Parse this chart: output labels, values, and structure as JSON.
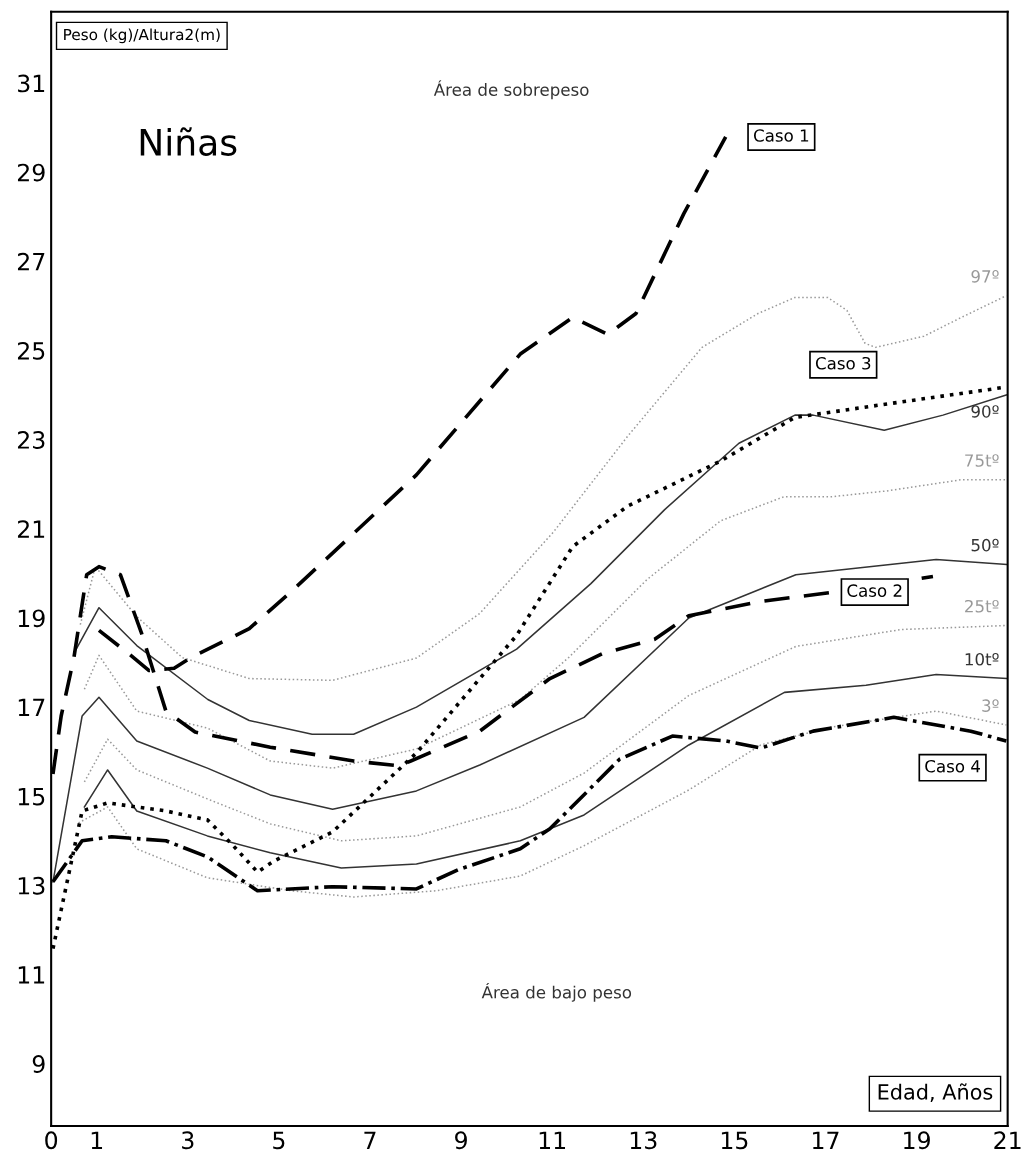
{
  "chart_data": {
    "type": "line",
    "title": "Niñas",
    "xlabel": "Edad, Años",
    "ylabel": "Peso (kg)/Altura2(m)",
    "annotations": [
      "Área de sobrepeso",
      "Área de bajo peso"
    ],
    "xlim": [
      0,
      21
    ],
    "ylim": [
      7.6,
      32.6
    ],
    "xticks": [
      0,
      1,
      3,
      5,
      7,
      9,
      11,
      13,
      15,
      17,
      19,
      21
    ],
    "yticks": [
      9,
      11,
      13,
      15,
      17,
      19,
      21,
      23,
      25,
      27,
      29,
      31
    ],
    "grid": false,
    "legend": false,
    "marker": "none",
    "series": [
      {
        "name": "97º",
        "color": "#999999",
        "line_style": "dotted",
        "x": [
          0.64,
          0.97,
          1.88,
          2.88,
          4.35,
          6.18,
          8.02,
          9.41,
          11.03,
          12.66,
          14.29,
          15.52,
          16.33,
          17.05,
          17.47,
          17.87,
          18.1,
          19.16,
          19.98,
          20.97
        ],
        "values": [
          18.85,
          20.15,
          19.03,
          18.11,
          17.64,
          17.6,
          18.1,
          19.1,
          20.93,
          23.08,
          25.07,
          25.83,
          26.19,
          26.19,
          25.9,
          25.16,
          25.07,
          25.32,
          25.74,
          26.23
        ]
      },
      {
        "name": "90º",
        "color": "#333333",
        "line_style": "solid",
        "x": [
          0.55,
          1.05,
          1.88,
          3.44,
          4.35,
          5.73,
          6.64,
          8.02,
          10.22,
          11.85,
          13.47,
          15.1,
          16.33,
          16.73,
          18.29,
          19.58,
          20.97
        ],
        "values": [
          18.3,
          19.23,
          18.38,
          17.17,
          16.7,
          16.39,
          16.39,
          17.0,
          18.3,
          19.77,
          21.43,
          22.92,
          23.55,
          23.55,
          23.21,
          23.55,
          24.0
        ]
      },
      {
        "name": "75tº",
        "color": "#999999",
        "line_style": "dotted",
        "x": [
          0.73,
          1.05,
          1.88,
          3.43,
          4.81,
          6.18,
          8.02,
          10.3,
          11.36,
          13.08,
          14.7,
          16.09,
          17.14,
          18.35,
          19.98,
          20.97
        ],
        "values": [
          17.4,
          18.16,
          16.91,
          16.53,
          15.79,
          15.63,
          16.06,
          17.17,
          18.11,
          19.86,
          21.18,
          21.72,
          21.72,
          21.85,
          22.1,
          22.1
        ]
      },
      {
        "name": "50º",
        "color": "#333333",
        "line_style": "solid",
        "x": [
          0.04,
          0.68,
          1.05,
          1.88,
          3.43,
          4.81,
          6.18,
          8.02,
          9.41,
          11.7,
          14.0,
          16.35,
          19.43,
          20.97
        ],
        "values": [
          13.08,
          16.8,
          17.22,
          16.24,
          15.63,
          15.03,
          14.71,
          15.12,
          15.7,
          16.77,
          19.0,
          19.97,
          20.31,
          20.2
        ]
      },
      {
        "name": "25tº",
        "color": "#999999",
        "line_style": "dotted",
        "x": [
          0.73,
          1.24,
          1.88,
          3.43,
          4.81,
          6.37,
          8.02,
          10.3,
          11.7,
          14.0,
          16.35,
          18.66,
          20.97
        ],
        "values": [
          15.32,
          16.28,
          15.59,
          14.94,
          14.38,
          14.0,
          14.11,
          14.76,
          15.52,
          17.26,
          18.36,
          18.74,
          18.83
        ]
      },
      {
        "name": "10tº",
        "color": "#333333",
        "line_style": "solid",
        "x": [
          0.73,
          1.24,
          1.88,
          3.43,
          4.81,
          6.37,
          8.02,
          10.3,
          11.7,
          14.0,
          16.1,
          17.89,
          19.43,
          20.97
        ],
        "values": [
          14.76,
          15.59,
          14.67,
          14.11,
          13.73,
          13.39,
          13.48,
          14.0,
          14.58,
          16.15,
          17.33,
          17.49,
          17.73,
          17.64
        ]
      },
      {
        "name": "3º",
        "color": "#999999",
        "line_style": "dotted",
        "x": [
          0.6,
          1.24,
          1.88,
          3.43,
          5.27,
          6.64,
          8.46,
          10.3,
          11.7,
          14.0,
          15.58,
          17.12,
          19.43,
          20.97
        ],
        "values": [
          14.4,
          14.76,
          13.82,
          13.17,
          12.88,
          12.74,
          12.88,
          13.21,
          13.89,
          15.14,
          16.15,
          16.55,
          16.91,
          16.6
        ]
      },
      {
        "name": "Caso 1",
        "color": "#000000",
        "line_style": "dashed",
        "x": [
          1.05,
          1.7,
          2.15,
          2.7,
          3.07,
          4.35,
          5.27,
          8.02,
          10.3,
          11.45,
          12.22,
          12.84,
          13.89,
          14.81
        ],
        "values": [
          18.72,
          18.2,
          17.82,
          17.87,
          18.11,
          18.76,
          19.59,
          22.21,
          24.92,
          25.74,
          25.36,
          25.83,
          28.07,
          29.79
        ]
      },
      {
        "name": "Caso 2",
        "color": "#000000",
        "line_style": "dashed",
        "x": [
          0.04,
          0.22,
          0.5,
          0.78,
          1.05,
          1.52,
          1.98,
          2.52,
          3.16,
          4.81,
          6.64,
          7.65,
          9.41,
          10.95,
          12.11,
          13.25,
          14.0,
          15.58,
          17.12,
          19.36
        ],
        "values": [
          15.5,
          16.8,
          18.11,
          19.97,
          20.15,
          19.97,
          18.67,
          16.91,
          16.44,
          16.1,
          15.79,
          15.68,
          16.46,
          17.64,
          18.2,
          18.52,
          19.05,
          19.37,
          19.57,
          19.93
        ]
      },
      {
        "name": "Caso 3",
        "color": "#000000",
        "line_style": "dotted",
        "x": [
          0.04,
          0.68,
          1.24,
          2.52,
          3.43,
          3.98,
          4.53,
          4.9,
          6.18,
          8.02,
          10.22,
          11.45,
          12.66,
          14.7,
          16.33,
          18.35,
          20.97
        ],
        "values": [
          11.58,
          14.67,
          14.85,
          14.67,
          14.47,
          13.91,
          13.3,
          13.55,
          14.2,
          15.97,
          18.61,
          20.6,
          21.51,
          22.52,
          23.5,
          23.8,
          24.18
        ]
      },
      {
        "name": "Caso 4",
        "color": "#000000",
        "line_style": "dashdot",
        "x": [
          0.04,
          0.68,
          1.33,
          2.52,
          3.43,
          4.53,
          6.18,
          8.02,
          8.93,
          10.3,
          10.95,
          12.48,
          13.64,
          14.81,
          15.58,
          16.73,
          18.5,
          20.19,
          20.97
        ],
        "values": [
          13.08,
          14.0,
          14.09,
          14.0,
          13.64,
          12.88,
          12.97,
          12.92,
          13.35,
          13.82,
          14.27,
          15.83,
          16.35,
          16.24,
          16.08,
          16.46,
          16.77,
          16.46,
          16.24
        ]
      }
    ]
  }
}
